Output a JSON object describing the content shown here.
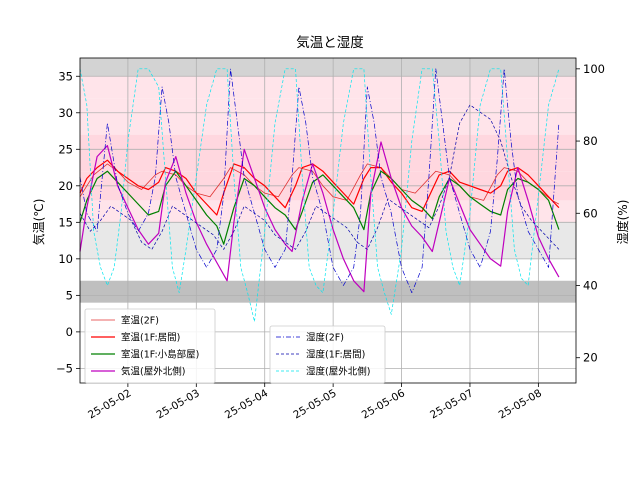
{
  "chart_data": {
    "type": "line",
    "title": "気温と湿度",
    "ylabel_left": "気温(℃)",
    "ylabel_right": "湿度(%)",
    "xlabel": "",
    "x_ticks": [
      "25-05-02",
      "25-05-03",
      "25-05-04",
      "25-05-05",
      "25-05-06",
      "25-05-07",
      "25-05-08"
    ],
    "x_tick_days": [
      1,
      2,
      3,
      4,
      5,
      6,
      7
    ],
    "xlim_days": [
      0.3,
      7.55
    ],
    "ylim_left": [
      -7,
      37.5
    ],
    "y_ticks_left": [
      -5,
      0,
      5,
      10,
      15,
      20,
      25,
      30,
      35
    ],
    "ylim_right": [
      13,
      103
    ],
    "y_ticks_right": [
      20,
      40,
      60,
      80,
      100
    ],
    "grid": true,
    "bands": [
      {
        "y0": 32,
        "y1": 35,
        "color": "#ffe4ea"
      },
      {
        "y0": 27,
        "y1": 32,
        "color": "#ffe4ea"
      },
      {
        "y0": 22,
        "y1": 27,
        "color": "#ffd7df"
      },
      {
        "y0": 18,
        "y1": 22,
        "color": "#ffd7df"
      },
      {
        "y0": 15,
        "y1": 18,
        "color": "#ffe4ea"
      },
      {
        "y0": 10,
        "y1": 15,
        "color": "#e8e8e8"
      },
      {
        "y0": 4,
        "y1": 7,
        "color": "#bfbfbf"
      },
      {
        "y0": 35,
        "y1": 38,
        "color": "#d3d3d3"
      }
    ],
    "legend_left": [
      {
        "name": "室温(2F)",
        "color": "#e03030",
        "style": "solid-thin"
      },
      {
        "name": "室温(1F:居間)",
        "color": "#ff0000",
        "style": "solid"
      },
      {
        "name": "室温(1F:小島部屋)",
        "color": "#008000",
        "style": "solid"
      },
      {
        "name": "気温(屋外北側)",
        "color": "#bf00bf",
        "style": "solid"
      }
    ],
    "legend_right": [
      {
        "name": "湿度(2F)",
        "color": "#0000cc",
        "style": "dashdot"
      },
      {
        "name": "湿度(1F:居間)",
        "color": "#0000aa",
        "style": "dashed"
      },
      {
        "name": "湿度(屋外北側)",
        "color": "#00e5ee",
        "style": "dashed"
      }
    ],
    "series": [
      {
        "name": "室温(2F)",
        "axis": "left",
        "color": "#e03030",
        "width": 0.8,
        "dash": "",
        "x": [
          0.3,
          0.5,
          0.7,
          0.85,
          1.0,
          1.2,
          1.4,
          1.5,
          1.7,
          1.85,
          2.0,
          2.2,
          2.4,
          2.5,
          2.7,
          2.85,
          3.0,
          3.2,
          3.4,
          3.5,
          3.7,
          3.85,
          4.0,
          4.2,
          4.4,
          4.5,
          4.7,
          4.85,
          5.0,
          5.2,
          5.4,
          5.5,
          5.7,
          5.85,
          6.0,
          6.2,
          6.4,
          6.5,
          6.7,
          6.85,
          7.0,
          7.2,
          7.3
        ],
        "y": [
          18.5,
          21.5,
          23.0,
          22.0,
          20.5,
          19.5,
          21.5,
          22.0,
          21.5,
          20.0,
          19.0,
          18.5,
          21.0,
          22.5,
          21.5,
          20.0,
          19.0,
          18.5,
          21.5,
          22.5,
          22.0,
          20.0,
          18.5,
          18.0,
          21.5,
          23.0,
          22.5,
          21.0,
          19.5,
          19.0,
          21.0,
          22.0,
          21.5,
          20.0,
          18.5,
          18.0,
          21.5,
          22.5,
          22.0,
          20.5,
          19.5,
          18.0,
          17.5
        ]
      },
      {
        "name": "室温(1F:居間)",
        "axis": "left",
        "color": "#ff0000",
        "width": 1.2,
        "dash": "",
        "x": [
          0.3,
          0.4,
          0.55,
          0.7,
          0.85,
          1.0,
          1.15,
          1.3,
          1.45,
          1.55,
          1.7,
          1.85,
          2.0,
          2.15,
          2.3,
          2.4,
          2.55,
          2.7,
          2.85,
          3.0,
          3.15,
          3.3,
          3.45,
          3.55,
          3.7,
          3.85,
          4.0,
          4.15,
          4.3,
          4.45,
          4.55,
          4.7,
          4.85,
          5.0,
          5.15,
          5.3,
          5.45,
          5.55,
          5.7,
          5.85,
          6.0,
          6.15,
          6.3,
          6.45,
          6.55,
          6.7,
          6.85,
          7.0,
          7.15,
          7.3
        ],
        "y": [
          19.0,
          21.0,
          22.5,
          23.5,
          22.0,
          21.0,
          20.0,
          19.5,
          20.5,
          22.5,
          22.0,
          21.0,
          19.0,
          17.5,
          16.0,
          19.0,
          23.0,
          22.5,
          21.0,
          20.0,
          18.5,
          17.0,
          20.0,
          22.5,
          23.0,
          22.0,
          20.5,
          19.0,
          17.5,
          21.0,
          22.5,
          22.5,
          20.5,
          19.0,
          17.0,
          16.5,
          19.5,
          21.5,
          22.0,
          20.5,
          20.0,
          19.5,
          19.0,
          20.0,
          22.0,
          22.5,
          21.5,
          20.0,
          18.5,
          17.0
        ]
      },
      {
        "name": "室温(1F:小島部屋)",
        "axis": "left",
        "color": "#008000",
        "width": 1.2,
        "dash": "",
        "x": [
          0.3,
          0.4,
          0.55,
          0.7,
          0.85,
          1.0,
          1.15,
          1.3,
          1.45,
          1.55,
          1.7,
          1.85,
          2.0,
          2.15,
          2.3,
          2.4,
          2.55,
          2.7,
          2.85,
          3.0,
          3.15,
          3.3,
          3.45,
          3.55,
          3.7,
          3.85,
          4.0,
          4.15,
          4.3,
          4.45,
          4.55,
          4.7,
          4.85,
          5.0,
          5.15,
          5.3,
          5.45,
          5.55,
          5.7,
          5.85,
          6.0,
          6.15,
          6.3,
          6.45,
          6.55,
          6.7,
          6.85,
          7.0,
          7.15,
          7.3
        ],
        "y": [
          15.0,
          18.0,
          21.0,
          22.0,
          20.5,
          19.0,
          17.5,
          16.0,
          16.5,
          20.0,
          22.0,
          20.0,
          18.0,
          16.0,
          14.5,
          12.0,
          17.0,
          21.0,
          20.0,
          18.5,
          17.0,
          16.0,
          14.0,
          16.5,
          20.5,
          21.5,
          20.0,
          18.5,
          17.0,
          14.0,
          19.0,
          22.0,
          21.0,
          19.5,
          18.0,
          17.0,
          15.5,
          18.5,
          21.0,
          20.0,
          18.5,
          17.5,
          16.5,
          16.0,
          19.5,
          21.0,
          20.5,
          19.5,
          18.0,
          14.0
        ]
      },
      {
        "name": "気温(屋外北側)",
        "axis": "left",
        "color": "#bf00bf",
        "width": 1.2,
        "dash": "",
        "x": [
          0.3,
          0.4,
          0.55,
          0.7,
          0.85,
          1.0,
          1.15,
          1.3,
          1.45,
          1.55,
          1.7,
          1.85,
          2.0,
          2.15,
          2.3,
          2.45,
          2.55,
          2.7,
          2.85,
          3.0,
          3.15,
          3.3,
          3.4,
          3.55,
          3.7,
          3.85,
          4.0,
          4.15,
          4.3,
          4.45,
          4.55,
          4.7,
          4.85,
          5.0,
          5.15,
          5.3,
          5.45,
          5.55,
          5.7,
          5.85,
          6.0,
          6.15,
          6.3,
          6.45,
          6.55,
          6.7,
          6.85,
          7.0,
          7.15,
          7.3
        ],
        "y": [
          11.0,
          17.0,
          24.0,
          25.5,
          20.0,
          17.0,
          14.0,
          12.0,
          13.5,
          20.5,
          24.0,
          19.0,
          15.0,
          12.0,
          9.5,
          7.0,
          15.0,
          25.0,
          21.0,
          17.0,
          14.0,
          12.0,
          11.0,
          18.0,
          23.0,
          19.0,
          14.0,
          10.0,
          7.0,
          5.5,
          19.0,
          26.0,
          21.0,
          17.0,
          14.5,
          13.0,
          11.0,
          15.0,
          21.0,
          17.5,
          14.0,
          12.0,
          10.0,
          9.0,
          16.5,
          22.5,
          18.0,
          13.0,
          10.0,
          7.5
        ]
      },
      {
        "name": "湿度(2F)",
        "axis": "right",
        "color": "#0000cc",
        "width": 0.7,
        "dash": "5 2 1 2",
        "x": [
          0.3,
          0.4,
          0.55,
          0.7,
          0.85,
          1.0,
          1.15,
          1.3,
          1.4,
          1.5,
          1.6,
          1.7,
          1.85,
          2.0,
          2.15,
          2.3,
          2.4,
          2.5,
          2.6,
          2.7,
          2.85,
          3.0,
          3.15,
          3.3,
          3.4,
          3.5,
          3.6,
          3.7,
          3.85,
          4.0,
          4.15,
          4.3,
          4.4,
          4.5,
          4.6,
          4.7,
          4.85,
          5.0,
          5.15,
          5.3,
          5.4,
          5.5,
          5.6,
          5.7,
          5.85,
          6.0,
          6.15,
          6.3,
          6.4,
          6.5,
          6.6,
          6.7,
          6.85,
          7.0,
          7.15,
          7.3
        ],
        "y": [
          70,
          60,
          55,
          85,
          68,
          60,
          55,
          60,
          70,
          95,
          85,
          70,
          60,
          50,
          45,
          50,
          65,
          100,
          85,
          70,
          60,
          50,
          45,
          50,
          70,
          95,
          85,
          70,
          60,
          45,
          40,
          45,
          60,
          95,
          85,
          70,
          60,
          45,
          38,
          45,
          70,
          100,
          85,
          70,
          60,
          50,
          45,
          55,
          75,
          100,
          80,
          65,
          55,
          50,
          45,
          85
        ]
      },
      {
        "name": "湿度(1F:居間)",
        "axis": "right",
        "color": "#0000aa",
        "width": 0.7,
        "dash": "3 2",
        "x": [
          0.3,
          0.45,
          0.6,
          0.75,
          0.9,
          1.05,
          1.2,
          1.35,
          1.5,
          1.65,
          1.8,
          1.95,
          2.1,
          2.25,
          2.4,
          2.55,
          2.7,
          2.85,
          3.0,
          3.15,
          3.3,
          3.45,
          3.6,
          3.75,
          3.9,
          4.05,
          4.2,
          4.35,
          4.5,
          4.65,
          4.8,
          4.95,
          5.1,
          5.25,
          5.4,
          5.55,
          5.7,
          5.85,
          6.0,
          6.15,
          6.3,
          6.45,
          6.6,
          6.75,
          6.9,
          7.05,
          7.2,
          7.3
        ],
        "y": [
          60,
          55,
          58,
          62,
          60,
          58,
          52,
          50,
          55,
          62,
          60,
          58,
          56,
          54,
          50,
          55,
          62,
          60,
          58,
          54,
          52,
          50,
          55,
          62,
          60,
          58,
          56,
          52,
          50,
          56,
          64,
          62,
          60,
          58,
          56,
          62,
          70,
          85,
          90,
          88,
          86,
          80,
          70,
          62,
          58,
          55,
          52,
          50
        ]
      },
      {
        "name": "湿度(屋外北側)",
        "axis": "right",
        "color": "#00e5ee",
        "width": 0.7,
        "dash": "3 2",
        "x": [
          0.3,
          0.4,
          0.5,
          0.6,
          0.7,
          0.8,
          0.9,
          1.0,
          1.15,
          1.3,
          1.45,
          1.55,
          1.65,
          1.75,
          1.85,
          2.0,
          2.15,
          2.3,
          2.45,
          2.55,
          2.65,
          2.75,
          2.85,
          3.0,
          3.15,
          3.3,
          3.45,
          3.55,
          3.65,
          3.75,
          3.85,
          4.0,
          4.15,
          4.3,
          4.45,
          4.55,
          4.65,
          4.75,
          4.85,
          5.0,
          5.15,
          5.3,
          5.45,
          5.55,
          5.65,
          5.75,
          5.85,
          6.0,
          6.15,
          6.3,
          6.45,
          6.55,
          6.65,
          6.75,
          6.85,
          7.0,
          7.15,
          7.3
        ],
        "y": [
          100,
          90,
          55,
          45,
          40,
          45,
          60,
          80,
          100,
          100,
          95,
          70,
          45,
          38,
          50,
          70,
          90,
          100,
          100,
          70,
          45,
          38,
          30,
          55,
          85,
          100,
          100,
          70,
          45,
          40,
          38,
          60,
          85,
          100,
          100,
          70,
          45,
          38,
          32,
          50,
          80,
          100,
          100,
          80,
          55,
          45,
          40,
          60,
          90,
          100,
          100,
          75,
          50,
          42,
          40,
          65,
          90,
          100
        ]
      }
    ]
  }
}
